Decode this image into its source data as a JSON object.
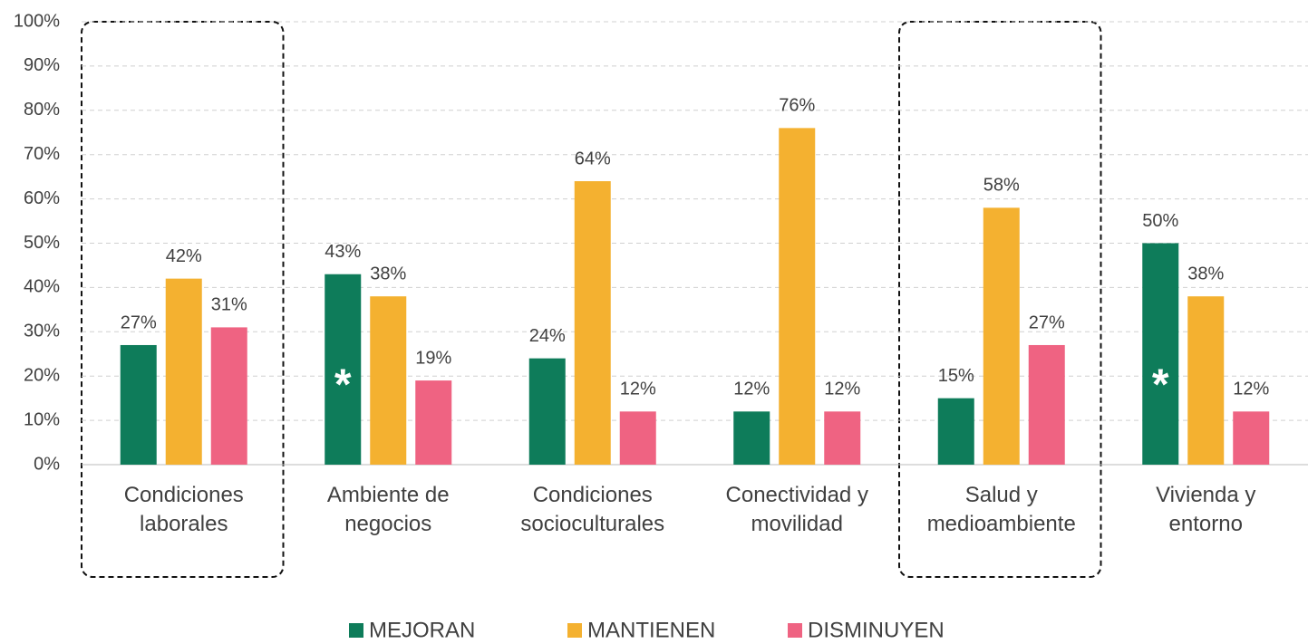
{
  "chart_data": {
    "type": "bar",
    "categories": [
      "Condiciones\nlaborales",
      "Ambiente de\nnegocios",
      "Condiciones\nsocioculturales",
      "Conectividad y\nmovilidad",
      "Salud y\nmedioambiente",
      "Vivienda y\nentorno"
    ],
    "series": [
      {
        "name": "MEJORAN",
        "color": "#0e7c5a",
        "values": [
          27,
          43,
          24,
          12,
          15,
          50
        ],
        "value_labels": [
          "27%",
          "43%",
          "24%",
          "12%",
          "15%",
          "50%"
        ]
      },
      {
        "name": "MANTIENEN",
        "color": "#f4b130",
        "values": [
          42,
          38,
          64,
          76,
          58,
          38
        ],
        "value_labels": [
          "42%",
          "38%",
          "64%",
          "76%",
          "58%",
          "38%"
        ]
      },
      {
        "name": "DISMINUYEN",
        "color": "#ef6382",
        "values": [
          31,
          19,
          12,
          12,
          27,
          12
        ],
        "value_labels": [
          "31%",
          "19%",
          "12%",
          "12%",
          "27%",
          "12%"
        ]
      }
    ],
    "annotations": [
      "*",
      "*"
    ],
    "ylim": [
      0,
      100
    ],
    "yticks": [
      {
        "value": 0,
        "label": "0%"
      },
      {
        "value": 10,
        "label": "10%"
      },
      {
        "value": 20,
        "label": "20%"
      },
      {
        "value": 30,
        "label": "30%"
      },
      {
        "value": 40,
        "label": "40%"
      },
      {
        "value": 50,
        "label": "50%"
      },
      {
        "value": 60,
        "label": "60%"
      },
      {
        "value": 70,
        "label": "70%"
      },
      {
        "value": 80,
        "label": "80%"
      },
      {
        "value": 90,
        "label": "90%"
      },
      {
        "value": 100,
        "label": "100%"
      }
    ],
    "grid": true,
    "legend": "bottom"
  }
}
